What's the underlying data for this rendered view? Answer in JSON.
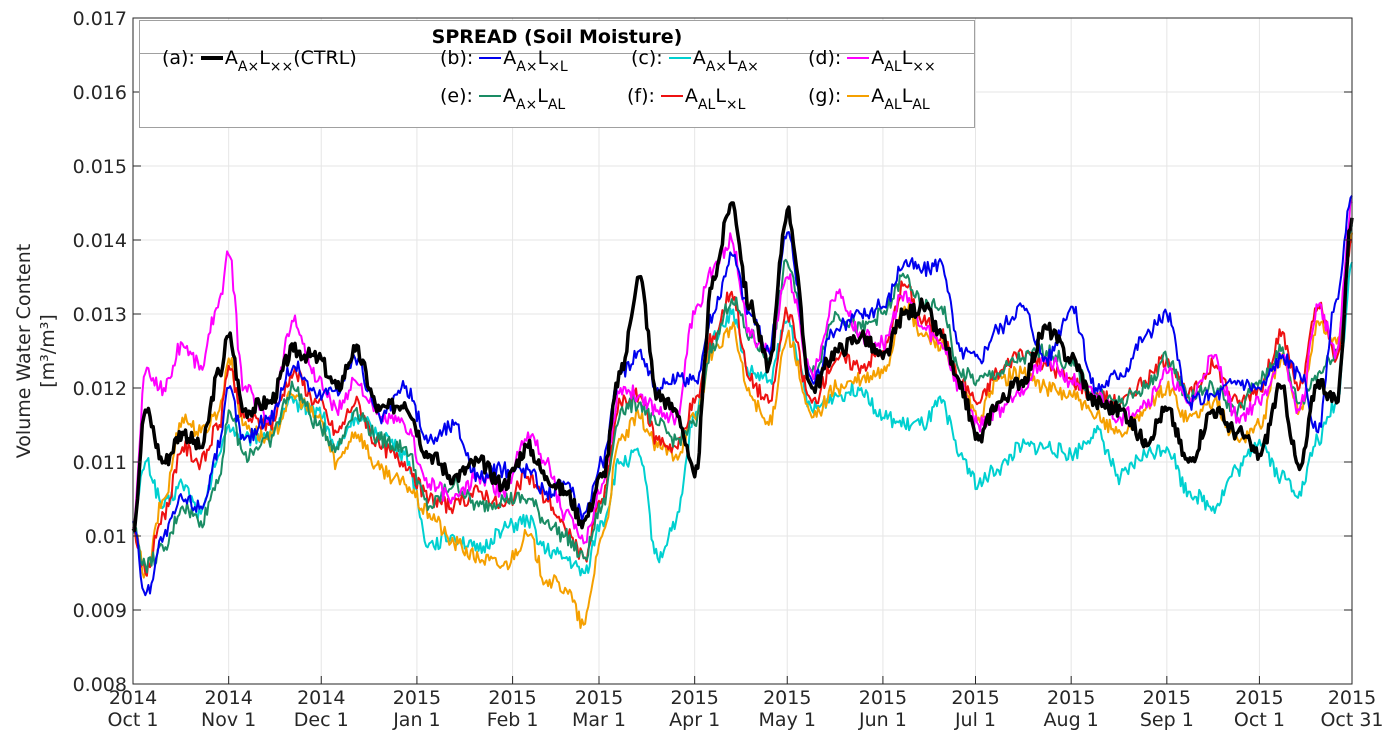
{
  "chart_data": {
    "type": "line",
    "title": "SPREAD (Soil Moisture)",
    "xlabel": "",
    "ylabel": "Volume Water Content",
    "ylabel_units": "[m³/m³]",
    "ylim": [
      0.008,
      0.017
    ],
    "yticks": [
      0.008,
      0.009,
      0.01,
      0.011,
      0.012,
      0.013,
      0.014,
      0.015,
      0.016,
      0.017
    ],
    "ytick_labels": [
      "0.008",
      "0.009",
      "0.01",
      "0.011",
      "0.012",
      "0.013",
      "0.014",
      "0.015",
      "0.016",
      "0.017"
    ],
    "xlim_days": [
      0,
      395
    ],
    "x_origin": "2014-10-01",
    "xticks_days": [
      0,
      31,
      61,
      92,
      123,
      151,
      182,
      212,
      243,
      273,
      304,
      335,
      365,
      395
    ],
    "xtick_labels": [
      [
        "2014",
        "Oct 1"
      ],
      [
        "2014",
        "Nov 1"
      ],
      [
        "2014",
        "Dec 1"
      ],
      [
        "2015",
        "Jan 1"
      ],
      [
        "2015",
        "Feb 1"
      ],
      [
        "2015",
        "Mar 1"
      ],
      [
        "2015",
        "Apr 1"
      ],
      [
        "2015",
        "May 1"
      ],
      [
        "2015",
        "Jun 1"
      ],
      [
        "2015",
        "Jul 1"
      ],
      [
        "2015",
        "Aug 1"
      ],
      [
        "2015",
        "Sep 1"
      ],
      [
        "2015",
        "Oct 1"
      ],
      [
        "2015",
        "Oct 31"
      ]
    ],
    "grid": true,
    "legend_placement": "top-left",
    "x_days": [
      0,
      4,
      10,
      16,
      22,
      28,
      31,
      36,
      44,
      52,
      60,
      66,
      72,
      80,
      88,
      96,
      104,
      112,
      120,
      128,
      134,
      140,
      146,
      152,
      158,
      164,
      170,
      176,
      182,
      188,
      194,
      200,
      206,
      212,
      220,
      228,
      236,
      243,
      250,
      256,
      262,
      268,
      274,
      280,
      288,
      296,
      304,
      312,
      320,
      328,
      335,
      342,
      350,
      358,
      365,
      372,
      378,
      384,
      390,
      395
    ],
    "series": [
      {
        "id": "a",
        "label_prefix": "(a):",
        "name": "A_{A×}L_{××}(CTRL)",
        "color": "#000000",
        "width": 3.5,
        "values": [
          0.0101,
          0.0117,
          0.011,
          0.0114,
          0.0112,
          0.0122,
          0.0127,
          0.0117,
          0.0118,
          0.0125,
          0.0124,
          0.012,
          0.0125,
          0.0117,
          0.0118,
          0.0111,
          0.0108,
          0.011,
          0.0107,
          0.0112,
          0.0108,
          0.0106,
          0.0102,
          0.0108,
          0.0122,
          0.0135,
          0.0119,
          0.0117,
          0.0108,
          0.0135,
          0.0145,
          0.0131,
          0.0123,
          0.0144,
          0.012,
          0.0125,
          0.0127,
          0.0124,
          0.013,
          0.0131,
          0.0127,
          0.012,
          0.0113,
          0.0118,
          0.0121,
          0.0128,
          0.0124,
          0.0118,
          0.0117,
          0.0113,
          0.0117,
          0.011,
          0.0117,
          0.0114,
          0.0111,
          0.012,
          0.0109,
          0.0121,
          0.0118,
          0.0143
        ]
      },
      {
        "id": "b",
        "label_prefix": "(b):",
        "name": "A_{A×}L_{×L}",
        "color": "#0000ee",
        "width": 2,
        "values": [
          0.0102,
          0.0092,
          0.01,
          0.0105,
          0.0104,
          0.0112,
          0.012,
          0.0113,
          0.0116,
          0.0123,
          0.0119,
          0.012,
          0.0124,
          0.0116,
          0.012,
          0.0113,
          0.0115,
          0.0108,
          0.0109,
          0.0109,
          0.0106,
          0.0107,
          0.0103,
          0.011,
          0.0122,
          0.0125,
          0.012,
          0.0121,
          0.0121,
          0.013,
          0.0138,
          0.013,
          0.0125,
          0.0141,
          0.0121,
          0.0128,
          0.013,
          0.0131,
          0.0137,
          0.0136,
          0.0137,
          0.0125,
          0.0124,
          0.0128,
          0.0131,
          0.0124,
          0.0131,
          0.012,
          0.0122,
          0.0127,
          0.013,
          0.0118,
          0.0119,
          0.0121,
          0.012,
          0.0124,
          0.0122,
          0.0114,
          0.0132,
          0.0146
        ]
      },
      {
        "id": "c",
        "label_prefix": "(c):",
        "name": "A_{A×}L_{A×}",
        "color": "#00d0d0",
        "width": 2,
        "values": [
          0.0101,
          0.011,
          0.0104,
          0.0107,
          0.0103,
          0.0111,
          0.0115,
          0.0113,
          0.0114,
          0.0118,
          0.0117,
          0.0112,
          0.0116,
          0.0114,
          0.0111,
          0.0099,
          0.01,
          0.0098,
          0.0101,
          0.0102,
          0.0098,
          0.0097,
          0.0095,
          0.0102,
          0.011,
          0.0111,
          0.0097,
          0.0102,
          0.0116,
          0.0127,
          0.013,
          0.0122,
          0.0121,
          0.0129,
          0.0117,
          0.0119,
          0.012,
          0.0116,
          0.0115,
          0.0115,
          0.0118,
          0.0111,
          0.0107,
          0.0109,
          0.0112,
          0.0112,
          0.0111,
          0.0114,
          0.0108,
          0.0111,
          0.0112,
          0.0106,
          0.0104,
          0.0109,
          0.0113,
          0.0108,
          0.0106,
          0.0113,
          0.0118,
          0.0137
        ]
      },
      {
        "id": "d",
        "label_prefix": "(d):",
        "name": "A_{AL}L_{××}",
        "color": "#ff00ff",
        "width": 2,
        "values": [
          0.0101,
          0.0122,
          0.012,
          0.0126,
          0.0123,
          0.0132,
          0.0138,
          0.012,
          0.0116,
          0.0129,
          0.0121,
          0.0117,
          0.0121,
          0.0116,
          0.0115,
          0.0107,
          0.0105,
          0.0108,
          0.0106,
          0.0114,
          0.011,
          0.0103,
          0.0099,
          0.0107,
          0.012,
          0.0119,
          0.0117,
          0.0116,
          0.013,
          0.0136,
          0.014,
          0.0127,
          0.0125,
          0.0135,
          0.0122,
          0.0133,
          0.0127,
          0.0126,
          0.0133,
          0.0128,
          0.0126,
          0.012,
          0.0115,
          0.0117,
          0.012,
          0.0124,
          0.0121,
          0.0119,
          0.0116,
          0.0118,
          0.0122,
          0.0118,
          0.0124,
          0.0116,
          0.0118,
          0.0124,
          0.0117,
          0.0131,
          0.0125,
          0.0145
        ]
      },
      {
        "id": "e",
        "label_prefix": "(e):",
        "name": "A_{A×}L_{AL}",
        "color": "#1a8c64",
        "width": 2,
        "values": [
          0.0101,
          0.0096,
          0.0098,
          0.0104,
          0.0102,
          0.0108,
          0.0117,
          0.0111,
          0.0113,
          0.012,
          0.0115,
          0.0112,
          0.0117,
          0.0113,
          0.0112,
          0.0104,
          0.0107,
          0.0104,
          0.0105,
          0.0105,
          0.0102,
          0.01,
          0.0097,
          0.0104,
          0.0117,
          0.0118,
          0.0115,
          0.0113,
          0.0115,
          0.0126,
          0.0132,
          0.0127,
          0.0124,
          0.0137,
          0.0122,
          0.013,
          0.0128,
          0.013,
          0.0135,
          0.0131,
          0.0131,
          0.0122,
          0.0121,
          0.0122,
          0.0124,
          0.0125,
          0.0123,
          0.0119,
          0.0118,
          0.012,
          0.0124,
          0.0119,
          0.012,
          0.0117,
          0.0121,
          0.0125,
          0.0118,
          0.0122,
          0.0125,
          0.0142
        ]
      },
      {
        "id": "f",
        "label_prefix": "(f):",
        "name": "A_{AL}L_{×L}",
        "color": "#ee1111",
        "width": 2,
        "values": [
          0.0101,
          0.0095,
          0.0103,
          0.0112,
          0.011,
          0.0115,
          0.0123,
          0.0116,
          0.0115,
          0.0122,
          0.0118,
          0.0114,
          0.0118,
          0.0112,
          0.011,
          0.0105,
          0.0104,
          0.0106,
          0.0104,
          0.0108,
          0.0105,
          0.0101,
          0.0097,
          0.0105,
          0.0118,
          0.0119,
          0.0113,
          0.0112,
          0.0118,
          0.0127,
          0.0133,
          0.0121,
          0.0118,
          0.013,
          0.0118,
          0.0124,
          0.0123,
          0.0125,
          0.0134,
          0.0129,
          0.0127,
          0.0121,
          0.0118,
          0.0122,
          0.0125,
          0.0123,
          0.0121,
          0.0119,
          0.0118,
          0.0121,
          0.0124,
          0.0119,
          0.0123,
          0.0118,
          0.012,
          0.0127,
          0.012,
          0.0131,
          0.0124,
          0.014
        ]
      },
      {
        "id": "g",
        "label_prefix": "(g):",
        "name": "A_{AL}L_{AL}",
        "color": "#f5a000",
        "width": 2,
        "values": [
          0.0101,
          0.0095,
          0.0105,
          0.0116,
          0.0114,
          0.0117,
          0.0124,
          0.0115,
          0.0113,
          0.0119,
          0.0116,
          0.011,
          0.0114,
          0.0109,
          0.0107,
          0.0103,
          0.0099,
          0.0097,
          0.0096,
          0.01,
          0.0094,
          0.0093,
          0.0088,
          0.01,
          0.0113,
          0.0116,
          0.0112,
          0.0111,
          0.0116,
          0.0125,
          0.0128,
          0.0119,
          0.0115,
          0.0127,
          0.0116,
          0.012,
          0.0121,
          0.0122,
          0.0131,
          0.0127,
          0.0126,
          0.012,
          0.0116,
          0.0121,
          0.0122,
          0.012,
          0.0119,
          0.0116,
          0.0114,
          0.0117,
          0.012,
          0.0116,
          0.0118,
          0.0113,
          0.0115,
          0.0124,
          0.0117,
          0.0129,
          0.0126,
          0.0141
        ]
      }
    ]
  }
}
